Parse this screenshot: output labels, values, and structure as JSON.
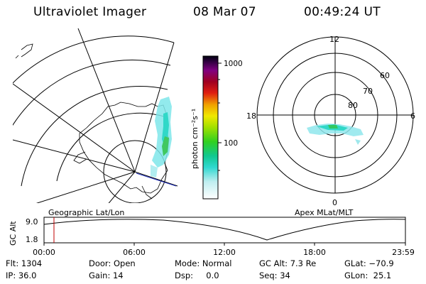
{
  "header": {
    "instrument": "Ultraviolet Imager",
    "date": "08 Mar 07",
    "time": "00:49:24 UT"
  },
  "colorbar": {
    "unit_label": "photon cm⁻²s⁻¹",
    "ticks": [
      "1000",
      "100"
    ]
  },
  "polar_plot": {
    "labels": {
      "top": "12",
      "left": "18",
      "right": "6",
      "bottom": "0",
      "lat60": "60",
      "lat70": "70",
      "lat80": "80"
    }
  },
  "orbit_panel": {
    "left_caption": "Geographic Lat/Lon",
    "right_caption": "Apex MLat/MLT",
    "y_axis_label": "GC Alt",
    "y_ticks": [
      "9.0",
      "1.8"
    ],
    "x_ticks": [
      "00:00",
      "06:00",
      "12:00",
      "18:00",
      "23:59"
    ]
  },
  "footer": {
    "row1": [
      {
        "text": "Flt: 1304"
      },
      {
        "text": "Door: Open"
      },
      {
        "text": "Mode: Normal"
      },
      {
        "text": "GC Alt: 7.3 Re"
      },
      {
        "text": "GLat: −70.9"
      }
    ],
    "row2": [
      {
        "text": "IP: 36.0"
      },
      {
        "text": "Gain: 14"
      },
      {
        "text": "Dsp:     0.0"
      },
      {
        "text": "Seq: 34"
      },
      {
        "text": "GLon:  25.1"
      }
    ]
  }
}
